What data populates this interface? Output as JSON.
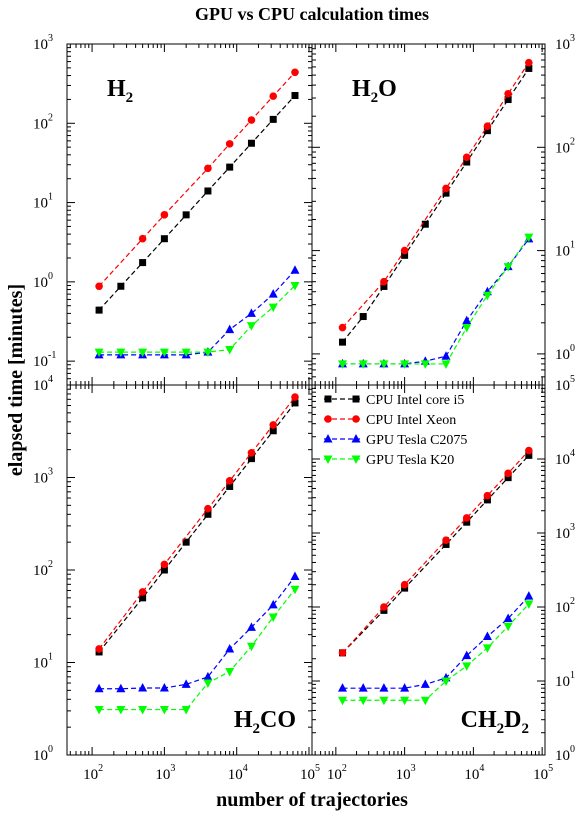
{
  "chart_data": {
    "type": "line",
    "title": "GPU vs CPU calculation times",
    "xlabel": "number of trajectories",
    "ylabel": "elapsed time [minutes]",
    "x_scale": "log",
    "y_scale": "log",
    "xlim": [
      45,
      110000
    ],
    "x": [
      125,
      250,
      500,
      1000,
      2000,
      4000,
      8000,
      16000,
      32000,
      64000
    ],
    "x_ticks": [
      {
        "base": "10",
        "exp": "2"
      },
      {
        "base": "10",
        "exp": "3"
      },
      {
        "base": "10",
        "exp": "4"
      },
      {
        "base": "10",
        "exp": "5"
      }
    ],
    "legend": {
      "placement": "top-right of lower-right panel",
      "entries": [
        "CPU Intel core i5",
        "CPU Intel Xeon",
        "GPU Tesla C2075",
        "GPU Tesla K20"
      ]
    },
    "series_styles": [
      {
        "name": "CPU Intel core i5",
        "color": "#000000",
        "marker": "square"
      },
      {
        "name": "CPU Intel Xeon",
        "color": "#ff0000",
        "marker": "circle"
      },
      {
        "name": "GPU Tesla C2075",
        "color": "#0000ff",
        "marker": "triangle-up"
      },
      {
        "name": "GPU Tesla K20",
        "color": "#00ff00",
        "marker": "triangle-down"
      }
    ],
    "panels": [
      {
        "label": {
          "main": "H",
          "sub": "2",
          "tail": ""
        },
        "label_corner": "top-left",
        "y_axis_side": "left",
        "ylim": [
          0.05,
          1000
        ],
        "y_ticks": [
          {
            "base": "10",
            "exp": "-1"
          },
          {
            "base": "10",
            "exp": "0"
          },
          {
            "base": "10",
            "exp": "1"
          },
          {
            "base": "10",
            "exp": "2"
          },
          {
            "base": "10",
            "exp": "3"
          }
        ],
        "series": [
          {
            "name": "CPU Intel core i5",
            "values": [
              0.44,
              0.88,
              1.75,
              3.5,
              7,
              14,
              28,
              56,
              112,
              224
            ]
          },
          {
            "name": "CPU Intel Xeon",
            "values": [
              0.88,
              null,
              3.5,
              7,
              null,
              27,
              55,
              110,
              220,
              440
            ]
          },
          {
            "name": "GPU Tesla C2075",
            "values": [
              0.12,
              0.12,
              0.12,
              0.12,
              0.12,
              0.13,
              0.25,
              0.4,
              0.7,
              1.4
            ]
          },
          {
            "name": "GPU Tesla K20",
            "values": [
              0.13,
              0.13,
              0.13,
              0.13,
              0.13,
              0.13,
              0.14,
              0.28,
              0.48,
              0.9
            ]
          }
        ]
      },
      {
        "label": {
          "main": "H",
          "sub": "2",
          "tail": "O"
        },
        "label_corner": "top-left",
        "y_axis_side": "right",
        "ylim": [
          0.5,
          1000
        ],
        "y_ticks": [
          {
            "base": "10",
            "exp": "0"
          },
          {
            "base": "10",
            "exp": "1"
          },
          {
            "base": "10",
            "exp": "2"
          },
          {
            "base": "10",
            "exp": "3"
          }
        ],
        "series": [
          {
            "name": "CPU Intel core i5",
            "values": [
              1.3,
              2.3,
              4.5,
              9,
              18,
              36,
              72,
              145,
              290,
              580
            ]
          },
          {
            "name": "CPU Intel Xeon",
            "values": [
              1.8,
              null,
              5,
              10,
              null,
              40,
              80,
              160,
              330,
              660
            ]
          },
          {
            "name": "GPU Tesla C2075",
            "values": [
              0.8,
              0.8,
              0.8,
              0.8,
              0.85,
              0.95,
              2.1,
              4,
              7,
              13
            ]
          },
          {
            "name": "GPU Tesla K20",
            "values": [
              0.8,
              0.8,
              0.8,
              0.8,
              0.8,
              0.8,
              1.8,
              3.7,
              7,
              13.5
            ]
          }
        ]
      },
      {
        "label": {
          "main": "H",
          "sub": "2",
          "tail": "CO"
        },
        "label_corner": "bottom-right",
        "y_axis_side": "left",
        "ylim": [
          1,
          10000
        ],
        "y_ticks": [
          {
            "base": "10",
            "exp": "0"
          },
          {
            "base": "10",
            "exp": "1"
          },
          {
            "base": "10",
            "exp": "2"
          },
          {
            "base": "10",
            "exp": "3"
          },
          {
            "base": "10",
            "exp": "4"
          }
        ],
        "series": [
          {
            "name": "CPU Intel core i5",
            "values": [
              13,
              null,
              50,
              100,
              200,
              400,
              800,
              1600,
              3200,
              6400
            ]
          },
          {
            "name": "CPU Intel Xeon",
            "values": [
              14,
              null,
              58,
              115,
              null,
              460,
              920,
              1850,
              3700,
              7400
            ]
          },
          {
            "name": "GPU Tesla C2075",
            "values": [
              5.2,
              5.2,
              5.3,
              5.3,
              5.8,
              7,
              14,
              24,
              42,
              85
            ]
          },
          {
            "name": "GPU Tesla K20",
            "values": [
              3.1,
              3.1,
              3.1,
              3.1,
              3.1,
              6,
              8,
              15,
              31,
              62
            ]
          }
        ]
      },
      {
        "label": {
          "main": "CH",
          "sub": "2",
          "tail": "D",
          "sub2": "2"
        },
        "label_corner": "bottom-right",
        "y_axis_side": "right",
        "ylim": [
          1,
          100000
        ],
        "y_ticks": [
          {
            "base": "10",
            "exp": "0"
          },
          {
            "base": "10",
            "exp": "1"
          },
          {
            "base": "10",
            "exp": "2"
          },
          {
            "base": "10",
            "exp": "3"
          },
          {
            "base": "10",
            "exp": "4"
          },
          {
            "base": "10",
            "exp": "5"
          }
        ],
        "series": [
          {
            "name": "CPU Intel core i5",
            "values": [
              24,
              null,
              90,
              180,
              null,
              700,
              1400,
              2800,
              5600,
              11200
            ]
          },
          {
            "name": "CPU Intel Xeon",
            "values": [
              24,
              null,
              100,
              200,
              null,
              800,
              1600,
              3200,
              6400,
              13000
            ]
          },
          {
            "name": "GPU Tesla C2075",
            "values": [
              8,
              8,
              8,
              8,
              9,
              11,
              22,
              40,
              70,
              140
            ]
          },
          {
            "name": "GPU Tesla K20",
            "values": [
              5.5,
              5.5,
              5.5,
              5.5,
              5.5,
              10,
              16,
              28,
              55,
              110
            ]
          }
        ]
      }
    ]
  }
}
